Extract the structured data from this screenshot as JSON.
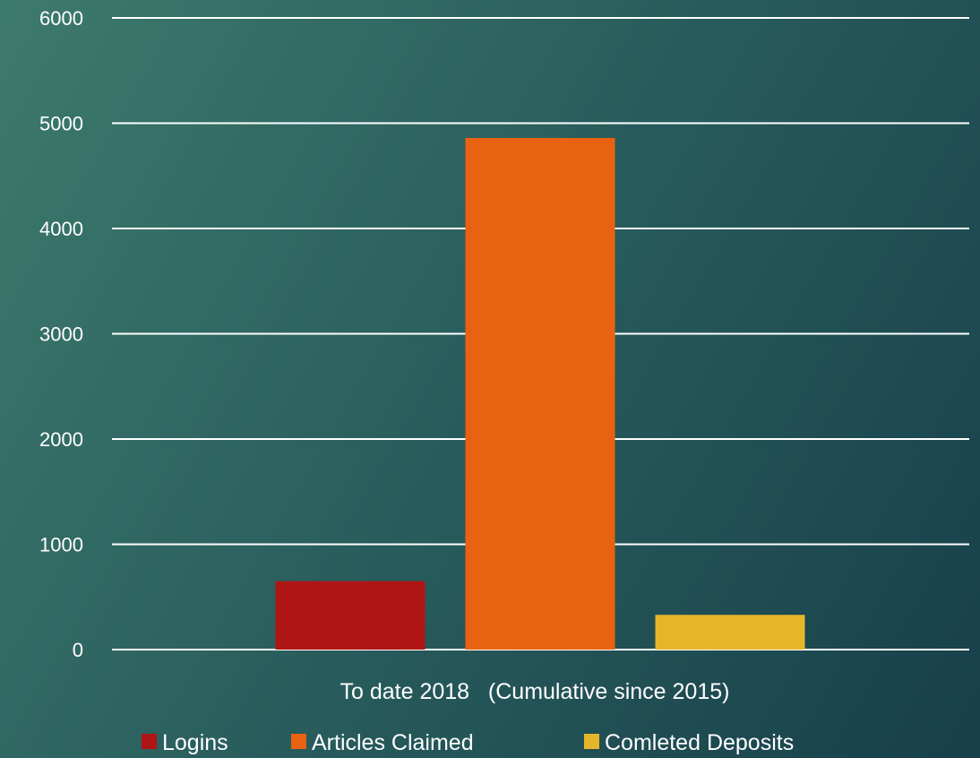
{
  "chart_data": {
    "type": "bar",
    "categories": [
      "To date 2018   (Cumulative since 2015)"
    ],
    "series": [
      {
        "name": "Logins",
        "values": [
          650
        ],
        "color": "#b01515"
      },
      {
        "name": "Articles Claimed",
        "values": [
          4860
        ],
        "color": "#e86212"
      },
      {
        "name": "Comleted Deposits",
        "values": [
          330
        ],
        "color": "#e6b62a"
      }
    ],
    "ylim": [
      0,
      6000
    ],
    "yticks": [
      0,
      1000,
      2000,
      3000,
      4000,
      5000,
      6000
    ],
    "grid": true,
    "legend_position": "bottom"
  }
}
